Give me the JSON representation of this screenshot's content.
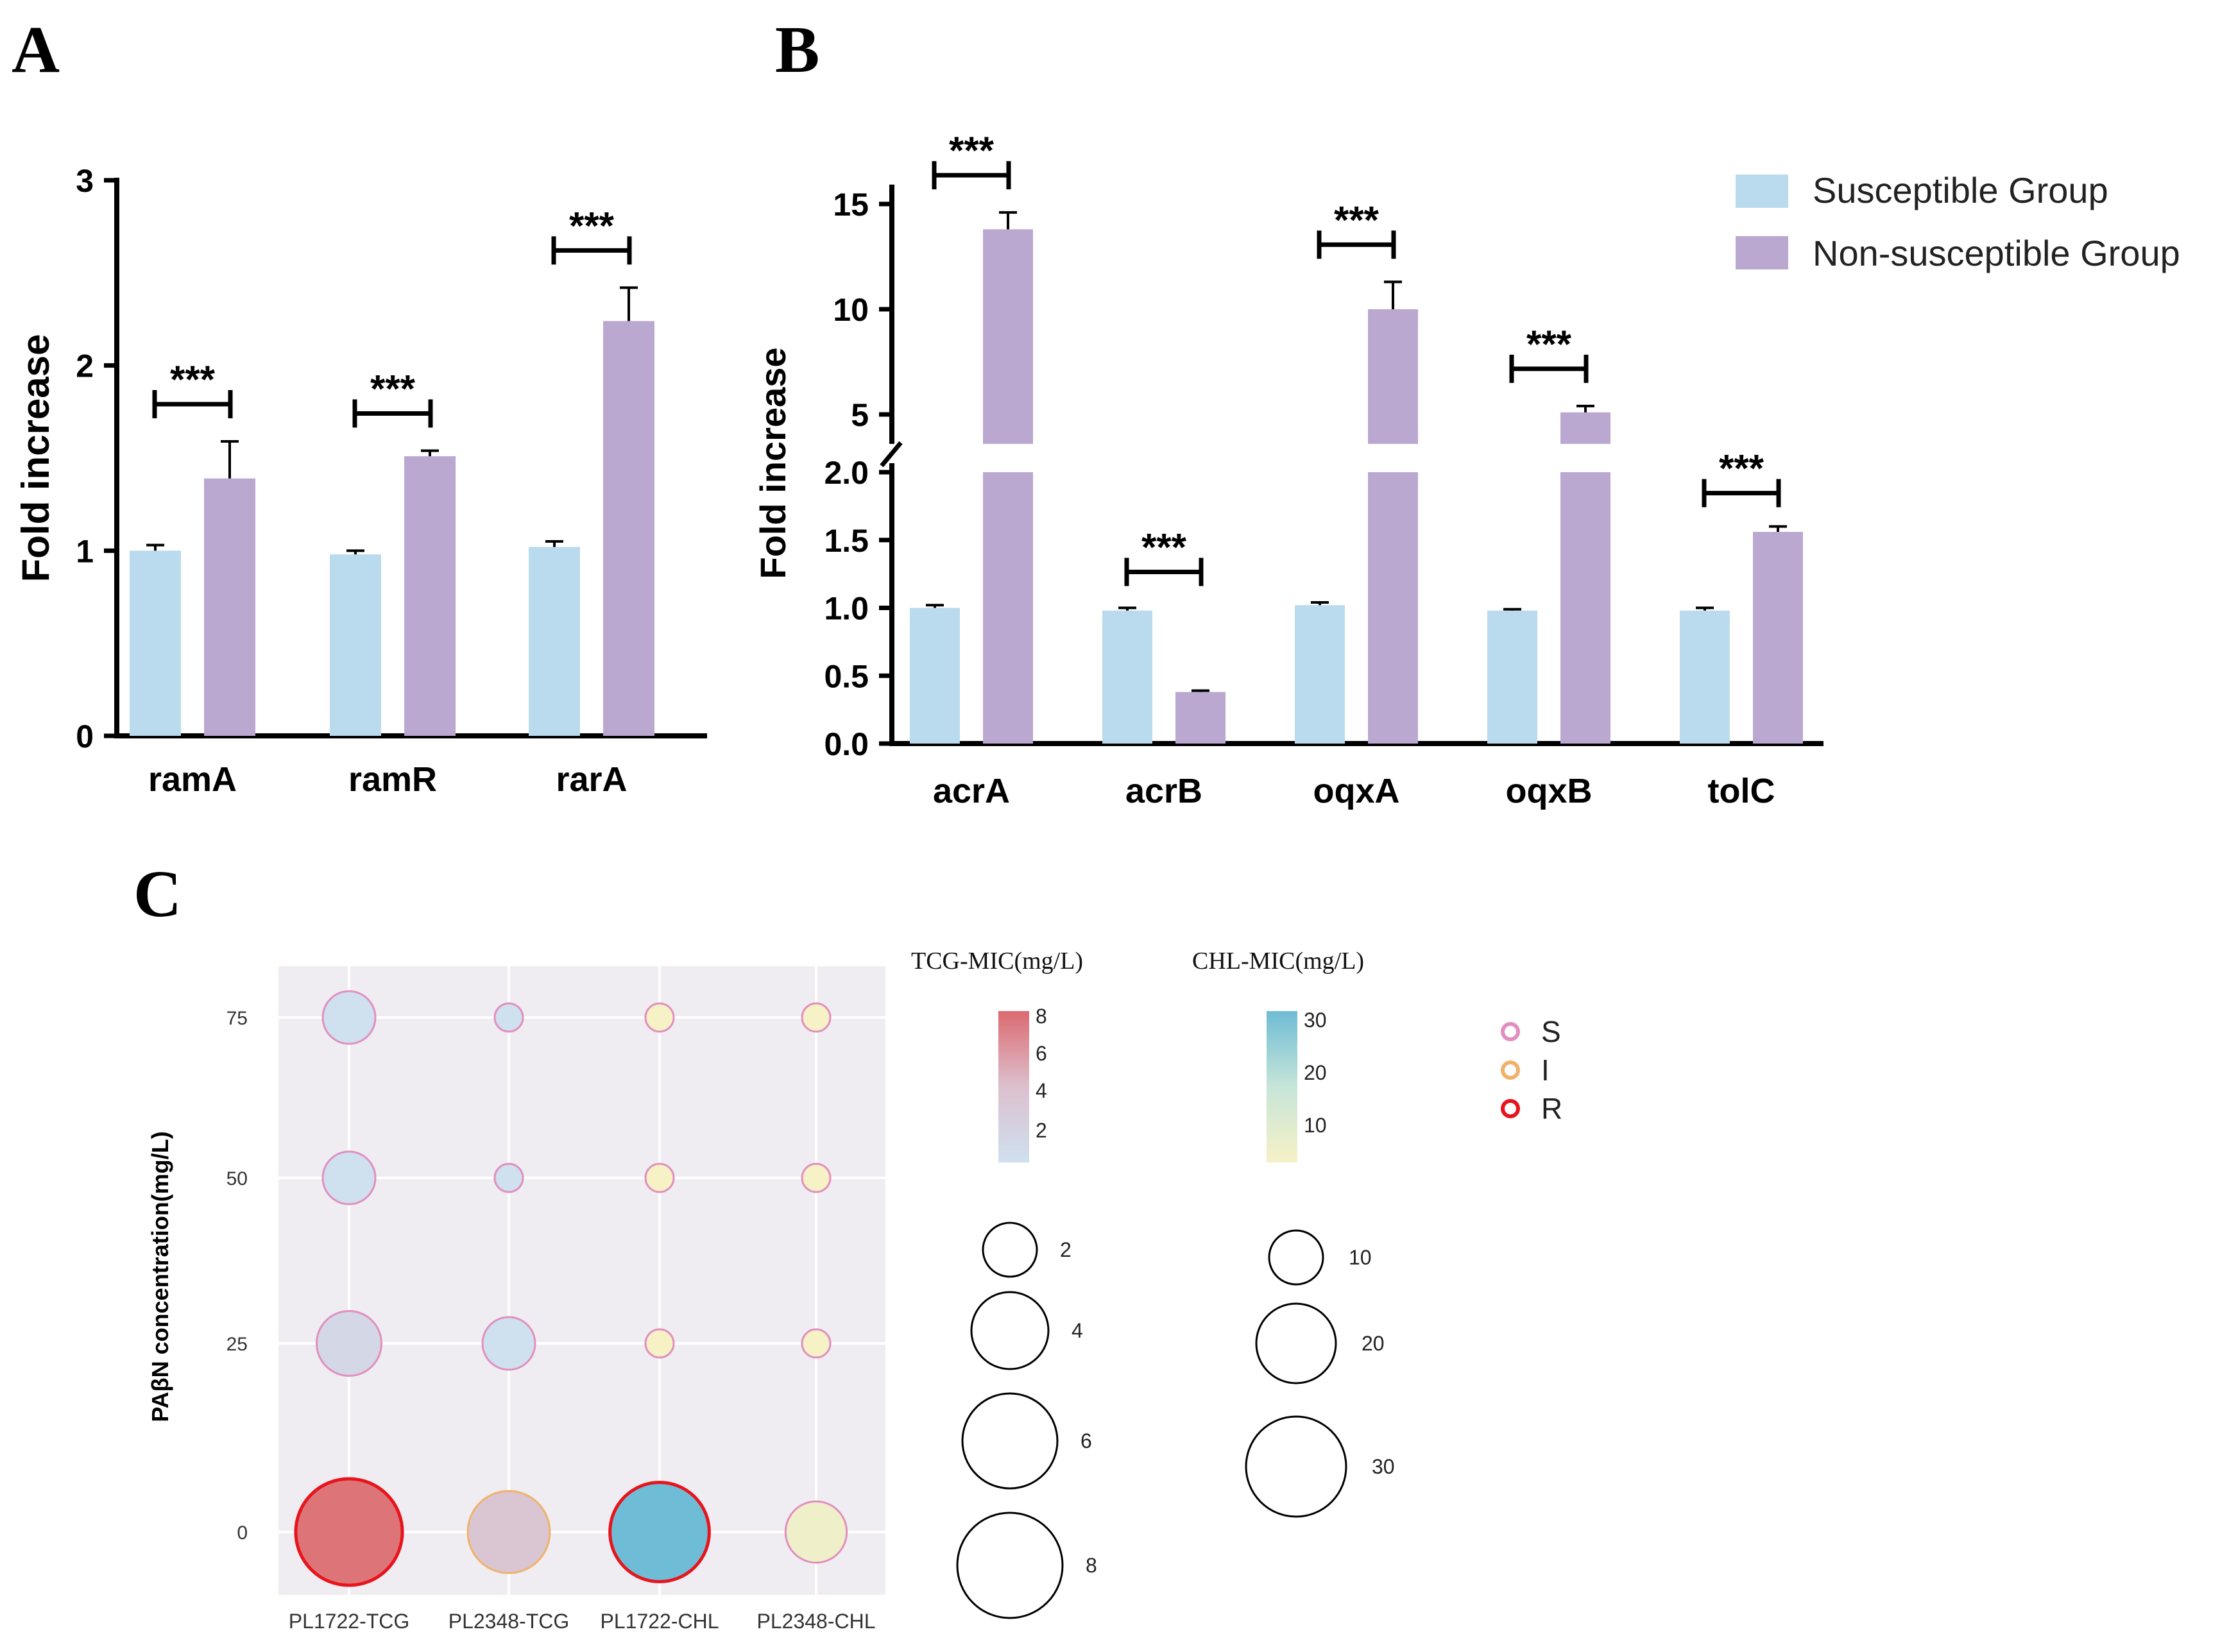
{
  "panels": {
    "a": "A",
    "b": "B",
    "c": "C"
  },
  "colors": {
    "susceptible": "#b9dbed",
    "non_susceptible": "#bba8d0",
    "s_ring": "#e28fbf",
    "i_ring": "#f0b26a",
    "r_ring": "#e8141c",
    "tcg_high": "#dc7478",
    "tcg_mid": "#dcc0ce",
    "tcg_low": "#cfe0ef",
    "chl_high": "#6fbcd6",
    "chl_mid": "#c6e5d8",
    "chl_low": "#f7f1c6"
  },
  "legend_ab": {
    "susceptible": "Susceptible Group",
    "non_susceptible": "Non-susceptible Group"
  },
  "chart_data": [
    {
      "id": "A",
      "type": "bar",
      "ylabel": "Fold increase",
      "ylim": [
        0,
        3
      ],
      "yticks": [
        "0",
        "1",
        "2",
        "3"
      ],
      "categories": [
        "ramA",
        "ramR",
        "rarA"
      ],
      "series": [
        {
          "name": "Susceptible Group",
          "values": [
            1.0,
            0.98,
            1.02
          ],
          "errors": [
            0.03,
            0.02,
            0.03
          ]
        },
        {
          "name": "Non-susceptible Group",
          "values": [
            1.39,
            1.51,
            2.24
          ],
          "errors": [
            0.2,
            0.03,
            0.18
          ]
        }
      ],
      "significance": [
        "***",
        "***",
        "***"
      ]
    },
    {
      "id": "B",
      "type": "bar",
      "ylabel": "Fold increase",
      "axis_break": {
        "lower": [
          0,
          2.0
        ],
        "upper": [
          3.6,
          15.8
        ]
      },
      "yticks_lower": [
        "0.0",
        "0.5",
        "1.0",
        "1.5",
        "2.0"
      ],
      "yticks_upper": [
        "5",
        "10",
        "15"
      ],
      "categories": [
        "acrA",
        "acrB",
        "oqxA",
        "oqxB",
        "tolC"
      ],
      "series": [
        {
          "name": "Susceptible Group",
          "values": [
            1.0,
            0.98,
            1.02,
            0.98,
            0.98
          ],
          "errors": [
            0.02,
            0.02,
            0.02,
            0.01,
            0.02
          ]
        },
        {
          "name": "Non-susceptible Group",
          "values": [
            13.8,
            0.38,
            10.0,
            5.1,
            1.56
          ],
          "errors": [
            0.8,
            0.01,
            1.3,
            0.3,
            0.04
          ]
        }
      ],
      "significance": [
        "***",
        "***",
        "***",
        "***",
        "***"
      ]
    },
    {
      "id": "C",
      "type": "scatter",
      "subtype": "bubble",
      "ylabel": "PAβN concentration(mg/L)",
      "categories": [
        "PL1722-TCG",
        "PL2348-TCG",
        "PL1722-CHL",
        "PL2348-CHL"
      ],
      "y_levels": [
        "0",
        "25",
        "50",
        "75"
      ],
      "points": [
        {
          "x": "PL1722-TCG",
          "y": 75,
          "mic": 1,
          "drug": "TCG",
          "cls": "S"
        },
        {
          "x": "PL1722-TCG",
          "y": 50,
          "mic": 1,
          "drug": "TCG",
          "cls": "S"
        },
        {
          "x": "PL1722-TCG",
          "y": 25,
          "mic": 2,
          "drug": "TCG",
          "cls": "S"
        },
        {
          "x": "PL1722-TCG",
          "y": 0,
          "mic": 8,
          "drug": "TCG",
          "cls": "R"
        },
        {
          "x": "PL2348-TCG",
          "y": 75,
          "mic": 0.25,
          "drug": "TCG",
          "cls": "S"
        },
        {
          "x": "PL2348-TCG",
          "y": 50,
          "mic": 0.25,
          "drug": "TCG",
          "cls": "S"
        },
        {
          "x": "PL2348-TCG",
          "y": 25,
          "mic": 1,
          "drug": "TCG",
          "cls": "S"
        },
        {
          "x": "PL2348-TCG",
          "y": 0,
          "mic": 4,
          "drug": "TCG",
          "cls": "I"
        },
        {
          "x": "PL1722-CHL",
          "y": 75,
          "mic": 2,
          "drug": "CHL",
          "cls": "S"
        },
        {
          "x": "PL1722-CHL",
          "y": 50,
          "mic": 2,
          "drug": "CHL",
          "cls": "S"
        },
        {
          "x": "PL1722-CHL",
          "y": 25,
          "mic": 2,
          "drug": "CHL",
          "cls": "S"
        },
        {
          "x": "PL1722-CHL",
          "y": 0,
          "mic": 32,
          "drug": "CHL",
          "cls": "R"
        },
        {
          "x": "PL2348-CHL",
          "y": 75,
          "mic": 2,
          "drug": "CHL",
          "cls": "S"
        },
        {
          "x": "PL2348-CHL",
          "y": 50,
          "mic": 2,
          "drug": "CHL",
          "cls": "S"
        },
        {
          "x": "PL2348-CHL",
          "y": 25,
          "mic": 2,
          "drug": "CHL",
          "cls": "S"
        },
        {
          "x": "PL2348-CHL",
          "y": 0,
          "mic": 8,
          "drug": "CHL",
          "cls": "S"
        }
      ],
      "legend": {
        "tcg_title": "TCG-MIC(mg/L)",
        "chl_title": "CHL-MIC(mg/L)",
        "tcg_ticks": [
          "8",
          "6",
          "4",
          "2"
        ],
        "chl_ticks": [
          "30",
          "20",
          "10"
        ],
        "tcg_sizes": [
          "2",
          "4",
          "6",
          "8"
        ],
        "chl_sizes": [
          "10",
          "20",
          "30"
        ],
        "classes": [
          "S",
          "I",
          "R"
        ]
      }
    }
  ]
}
